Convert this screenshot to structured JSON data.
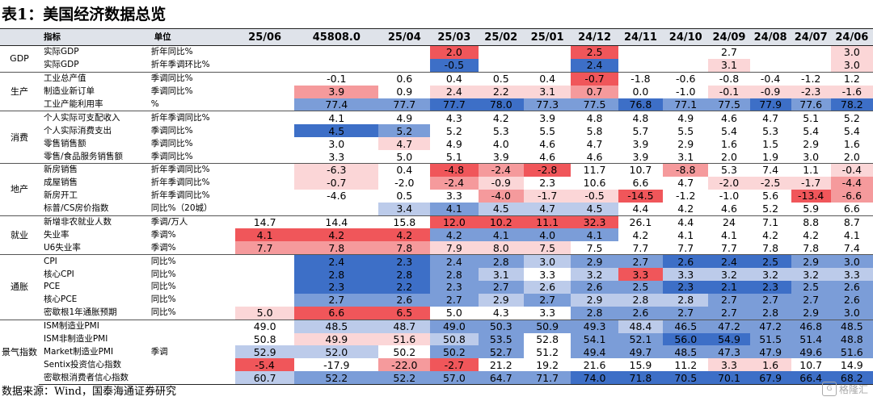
{
  "title": "表1：美国经济数据总览",
  "source": "数据来源：Wind，国泰海通证券研究",
  "watermark": "格隆汇",
  "columns": {
    "indicator": "指标",
    "unit": "单位",
    "periods": [
      "25/06",
      "45808.0",
      "25/04",
      "25/03",
      "25/02",
      "25/01",
      "24/12",
      "24/11",
      "24/10",
      "24/09",
      "24/08",
      "24/07",
      "24/06"
    ]
  },
  "colors": {
    "red3": "#f0565a",
    "red2": "#f59a9c",
    "red1": "#fbd6d7",
    "blue3": "#3d6fc7",
    "blue2": "#7b9dd8",
    "blue1": "#bccbea"
  },
  "groups": [
    {
      "name": "GDP",
      "rows": [
        {
          "label": "实际GDP",
          "unit": "折年同比%",
          "values": [
            "",
            "",
            "",
            "2.0",
            "",
            "",
            "2.5",
            "",
            "",
            "2.7",
            "",
            "",
            "3.0"
          ],
          "shade": [
            "",
            "",
            "",
            "r3",
            "",
            "",
            "r3",
            "",
            "",
            "",
            "",
            "",
            "r1"
          ]
        },
        {
          "label": "实际GDP",
          "unit": "折年季调环比%",
          "values": [
            "",
            "",
            "",
            "-0.5",
            "",
            "",
            "2.4",
            "",
            "",
            "3.1",
            "",
            "",
            "3.0"
          ],
          "shade": [
            "",
            "",
            "",
            "b3",
            "",
            "",
            "b3",
            "",
            "",
            "r1",
            "",
            "",
            "r1"
          ]
        }
      ]
    },
    {
      "name": "生产",
      "rows": [
        {
          "label": "工业总产值",
          "unit": "季调同比%",
          "values": [
            "",
            "-0.1",
            "0.6",
            "0.4",
            "0.5",
            "0.4",
            "-0.7",
            "-1.8",
            "-0.6",
            "-0.8",
            "-0.4",
            "-1.2",
            "1.2"
          ],
          "shade": [
            "",
            "",
            "",
            "",
            "",
            "",
            "r3",
            "",
            "",
            "",
            "",
            "",
            ""
          ]
        },
        {
          "label": "制造业新订单",
          "unit": "季调同比%",
          "values": [
            "",
            "3.9",
            "0.9",
            "2.4",
            "2.2",
            "3.1",
            "0.7",
            "0.0",
            "-1.0",
            "-0.1",
            "-0.9",
            "-2.3",
            "-1.6"
          ],
          "shade": [
            "",
            "r2",
            "",
            "r1",
            "r1",
            "r1",
            "r2",
            "",
            "",
            "r1",
            "r1",
            "r1",
            "r1"
          ]
        },
        {
          "label": "工业产能利用率",
          "unit": "%",
          "values": [
            "",
            "77.4",
            "77.7",
            "77.7",
            "78.0",
            "77.3",
            "77.5",
            "76.8",
            "77.1",
            "77.5",
            "77.9",
            "77.6",
            "78.2"
          ],
          "shade": [
            "",
            "b2",
            "b2",
            "b3",
            "b3",
            "b2",
            "b2",
            "b3",
            "b2",
            "b2",
            "b3",
            "b2",
            "b3"
          ]
        }
      ]
    },
    {
      "name": "消费",
      "rows": [
        {
          "label": "个人实际可支配收入",
          "unit": "折年季调同比%",
          "values": [
            "",
            "4.1",
            "4.9",
            "4.3",
            "4.2",
            "3.9",
            "4.8",
            "4.8",
            "4.9",
            "4.6",
            "4.7",
            "5.1",
            "5.2"
          ],
          "shade": [
            "",
            "",
            "",
            "",
            "",
            "",
            "",
            "",
            "",
            "",
            "",
            "",
            ""
          ]
        },
        {
          "label": "个人实际消费支出",
          "unit": "季调同比%",
          "values": [
            "",
            "4.5",
            "5.2",
            "5.2",
            "5.3",
            "5.5",
            "5.8",
            "5.7",
            "5.5",
            "5.4",
            "5.3",
            "5.4",
            "5.4"
          ],
          "shade": [
            "",
            "b3",
            "b2",
            "",
            "",
            "",
            "",
            "",
            "",
            "",
            "",
            "",
            ""
          ]
        },
        {
          "label": "零售销售额",
          "unit": "季调同比%",
          "values": [
            "",
            "3.0",
            "4.7",
            "4.9",
            "4.0",
            "4.6",
            "4.7",
            "3.9",
            "2.9",
            "1.6",
            "1.5",
            "2.9",
            "1.6"
          ],
          "shade": [
            "",
            "",
            "r1",
            "",
            "",
            "",
            "",
            "",
            "",
            "",
            "",
            "",
            ""
          ]
        },
        {
          "label": "零售/食品服务销售额",
          "unit": "季调同比%",
          "values": [
            "",
            "3.3",
            "5.0",
            "5.1",
            "3.9",
            "4.6",
            "4.6",
            "3.9",
            "3.1",
            "2.0",
            "1.9",
            "3.0",
            "2.0"
          ],
          "shade": [
            "",
            "",
            "",
            "",
            "",
            "",
            "",
            "",
            "",
            "",
            "",
            "",
            ""
          ]
        }
      ]
    },
    {
      "name": "地产",
      "rows": [
        {
          "label": "新房销售",
          "unit": "折年季调同比%",
          "values": [
            "",
            "-6.3",
            "0.4",
            "-4.8",
            "-2.4",
            "-2.8",
            "11.7",
            "10.7",
            "-8.8",
            "5.3",
            "7.4",
            "1.1",
            "-0.4"
          ],
          "shade": [
            "",
            "r1",
            "",
            "r3",
            "r2",
            "r3",
            "",
            "",
            "r2",
            "",
            "",
            "",
            "r1"
          ]
        },
        {
          "label": "成屋销售",
          "unit": "折年季调同比%",
          "values": [
            "",
            "-0.7",
            "-2.0",
            "-2.4",
            "-0.9",
            "2.3",
            "10.6",
            "6.6",
            "4.7",
            "-2.0",
            "-2.5",
            "-1.7",
            "-4.4"
          ],
          "shade": [
            "",
            "r1",
            "",
            "r2",
            "r1",
            "",
            "",
            "",
            "",
            "r1",
            "r1",
            "r1",
            "r2"
          ]
        },
        {
          "label": "新房开工",
          "unit": "折年季调同比%",
          "values": [
            "",
            "-4.6",
            "0.5",
            "3.3",
            "-4.0",
            "-1.7",
            "-0.5",
            "-14.5",
            "-1.2",
            "-1.0",
            "5.6",
            "-13.4",
            "-6.6"
          ],
          "shade": [
            "",
            "",
            "",
            "",
            "r2",
            "r1",
            "r1",
            "r3",
            "",
            "",
            "",
            "r3",
            "r2"
          ]
        },
        {
          "label": "标普/CS房价指数",
          "unit": "同比%（20城）",
          "values": [
            "",
            "",
            "3.4",
            "4.1",
            "4.5",
            "4.7",
            "4.5",
            "4.4",
            "4.2",
            "4.6",
            "5.2",
            "5.9",
            "6.6"
          ],
          "shade": [
            "",
            "",
            "b1",
            "b2",
            "b1",
            "b1",
            "b1",
            "",
            "",
            "",
            "",
            "",
            ""
          ]
        }
      ]
    },
    {
      "name": "就业",
      "rows": [
        {
          "label": "新增非农就业人数",
          "unit": "季调/万人",
          "values": [
            "14.7",
            "14.4",
            "15.8",
            "12.0",
            "10.2",
            "11.1",
            "32.3",
            "26.1",
            "4.4",
            "24",
            "7.1",
            "8.8",
            "8.7"
          ],
          "shade": [
            "",
            "",
            "",
            "r3",
            "r3",
            "r3",
            "r3",
            "",
            "",
            "",
            "",
            "",
            ""
          ]
        },
        {
          "label": "失业率",
          "unit": "季调%",
          "values": [
            "4.1",
            "4.2",
            "4.2",
            "4.2",
            "4.1",
            "4.0",
            "4.1",
            "4.2",
            "4.1",
            "4.1",
            "4.2",
            "4.2",
            "4.1"
          ],
          "shade": [
            "r3",
            "r3",
            "r3",
            "b2",
            "b2",
            "b2",
            "b2",
            "",
            "",
            "",
            "",
            "",
            ""
          ]
        },
        {
          "label": "U6失业率",
          "unit": "季调%",
          "values": [
            "7.7",
            "7.8",
            "7.8",
            "7.9",
            "8.0",
            "7.5",
            "7.5",
            "7.7",
            "7.7",
            "7.7",
            "7.8",
            "7.8",
            "7.4"
          ],
          "shade": [
            "r2",
            "r2",
            "r2",
            "r1",
            "r1",
            "r1",
            "",
            "",
            "",
            "",
            "",
            "",
            ""
          ]
        }
      ]
    },
    {
      "name": "通胀",
      "rows": [
        {
          "label": "CPI",
          "unit": "同比%",
          "values": [
            "",
            "2.4",
            "2.3",
            "2.4",
            "2.8",
            "3.0",
            "2.9",
            "2.7",
            "2.6",
            "2.4",
            "2.5",
            "2.9",
            "3.0"
          ],
          "shade": [
            "",
            "b3",
            "b3",
            "b2",
            "b2",
            "b1",
            "b2",
            "b2",
            "b3",
            "b3",
            "b3",
            "b2",
            "b2"
          ]
        },
        {
          "label": "核心CPI",
          "unit": "同比%",
          "values": [
            "",
            "2.8",
            "2.8",
            "2.8",
            "3.1",
            "3.3",
            "3.2",
            "3.3",
            "3.3",
            "3.2",
            "3.2",
            "3.2",
            "3.3"
          ],
          "shade": [
            "",
            "b3",
            "b3",
            "b2",
            "b1",
            "",
            "b1",
            "r3",
            "b1",
            "b1",
            "b1",
            "b1",
            "b1"
          ]
        },
        {
          "label": "PCE",
          "unit": "同比%",
          "values": [
            "",
            "2.3",
            "2.2",
            "2.3",
            "2.7",
            "2.6",
            "2.6",
            "2.5",
            "2.3",
            "2.1",
            "2.3",
            "2.5",
            "2.6"
          ],
          "shade": [
            "",
            "b3",
            "b3",
            "b2",
            "b2",
            "b1",
            "b2",
            "b2",
            "b3",
            "b3",
            "b3",
            "b2",
            "b2"
          ]
        },
        {
          "label": "核心PCE",
          "unit": "同比%",
          "values": [
            "",
            "2.7",
            "2.6",
            "2.7",
            "2.9",
            "2.7",
            "2.9",
            "2.8",
            "2.8",
            "2.7",
            "2.7",
            "2.7",
            "2.6"
          ],
          "shade": [
            "",
            "b2",
            "b2",
            "b2",
            "b1",
            "b2",
            "b1",
            "b1",
            "b1",
            "b2",
            "b2",
            "b2",
            "b2"
          ]
        },
        {
          "label": "密歇根1年通胀预期",
          "unit": "同比%",
          "values": [
            "5.0",
            "6.6",
            "6.5",
            "5.0",
            "4.3",
            "3.3",
            "2.8",
            "2.6",
            "2.7",
            "2.7",
            "2.8",
            "2.9",
            "3.0"
          ],
          "shade": [
            "r1",
            "r3",
            "r3",
            "",
            "",
            "",
            "b2",
            "b2",
            "b2",
            "b2",
            "b2",
            "b2",
            "b2"
          ]
        }
      ]
    },
    {
      "name": "景气指数",
      "rows": [
        {
          "label": "ISM制造业PMI",
          "unit": "",
          "values": [
            "49.0",
            "48.5",
            "48.7",
            "49.0",
            "50.3",
            "50.9",
            "49.3",
            "48.4",
            "46.5",
            "47.2",
            "47.2",
            "46.8",
            "48.5"
          ],
          "shade": [
            "",
            "b1",
            "b1",
            "b2",
            "b2",
            "b2",
            "b2",
            "b1",
            "b2",
            "b2",
            "b2",
            "b2",
            "b2"
          ]
        },
        {
          "label": "ISM非制造业PMI",
          "unit": "",
          "values": [
            "50.8",
            "49.9",
            "51.6",
            "50.8",
            "53.5",
            "52.8",
            "54.1",
            "52.1",
            "56.0",
            "54.9",
            "51.5",
            "51.4",
            "48.8"
          ],
          "shade": [
            "",
            "r1",
            "r1",
            "b1",
            "b2",
            "",
            "b2",
            "b2",
            "b3",
            "b3",
            "b2",
            "b2",
            "b2"
          ]
        },
        {
          "label": "Market制造业PMI",
          "unit": "季调",
          "values": [
            "52.9",
            "52.0",
            "50.2",
            "50.2",
            "52.7",
            "51.2",
            "49.4",
            "49.7",
            "48.5",
            "47.3",
            "47.9",
            "49.6",
            "51.6"
          ],
          "shade": [
            "b1",
            "b1",
            "",
            "b2",
            "b2",
            "",
            "b2",
            "b2",
            "b2",
            "b2",
            "b2",
            "b2",
            "b2"
          ]
        },
        {
          "label": "Sentix投资信心指数",
          "unit": "",
          "values": [
            "-5.4",
            "-17.9",
            "-22.0",
            "-2.7",
            "21.2",
            "19.2",
            "21.6",
            "15.9",
            "11.2",
            "3.3",
            "1.6",
            "10.7",
            "14.9"
          ],
          "shade": [
            "r3",
            "",
            "r2",
            "r3",
            "",
            "",
            "",
            "",
            "",
            "r1",
            "r1",
            "",
            ""
          ]
        },
        {
          "label": "密歇根消费者信心指数",
          "unit": "",
          "values": [
            "60.7",
            "52.2",
            "52.2",
            "57.0",
            "64.7",
            "71.7",
            "74.0",
            "71.8",
            "70.5",
            "70.1",
            "67.9",
            "66.4",
            "68.2"
          ],
          "shade": [
            "b1",
            "b2",
            "b2",
            "b2",
            "b2",
            "b2",
            "b3",
            "b3",
            "b3",
            "b3",
            "b3",
            "b3",
            "b3"
          ]
        }
      ]
    }
  ]
}
